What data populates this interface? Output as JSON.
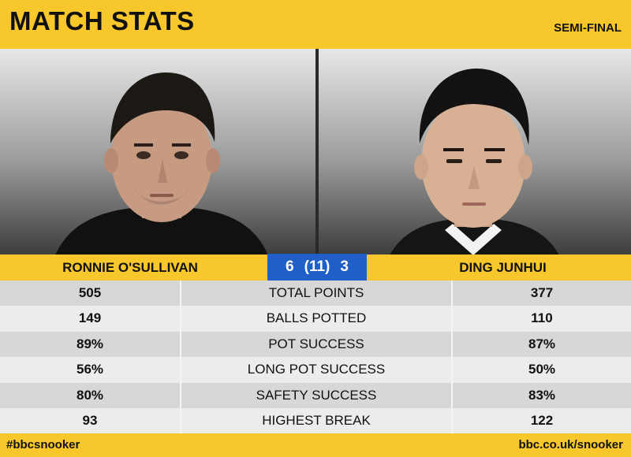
{
  "header": {
    "title": "MATCH STATS",
    "stage": "SEMI-FINAL"
  },
  "players": {
    "left": {
      "name": "RONNIE O'SULLIVAN",
      "photo": "player-portrait-left"
    },
    "right": {
      "name": "DING JUNHUI",
      "photo": "player-portrait-right"
    }
  },
  "score": {
    "left_frames": "6",
    "best_of": "(11)",
    "right_frames": "3"
  },
  "stats": [
    {
      "label": "TOTAL POINTS",
      "left": "505",
      "right": "377"
    },
    {
      "label": "BALLS POTTED",
      "left": "149",
      "right": "110"
    },
    {
      "label": "POT SUCCESS",
      "left": "89%",
      "right": "87%"
    },
    {
      "label": "LONG POT SUCCESS",
      "left": "56%",
      "right": "50%"
    },
    {
      "label": "SAFETY SUCCESS",
      "left": "80%",
      "right": "83%"
    },
    {
      "label": "HIGHEST BREAK",
      "left": "93",
      "right": "122"
    }
  ],
  "footer": {
    "hashtag": "#bbcsnooker",
    "site": "bbc.co.uk/snooker"
  },
  "colors": {
    "accent_yellow": "#f7c72b",
    "score_blue": "#1f5fc7"
  }
}
